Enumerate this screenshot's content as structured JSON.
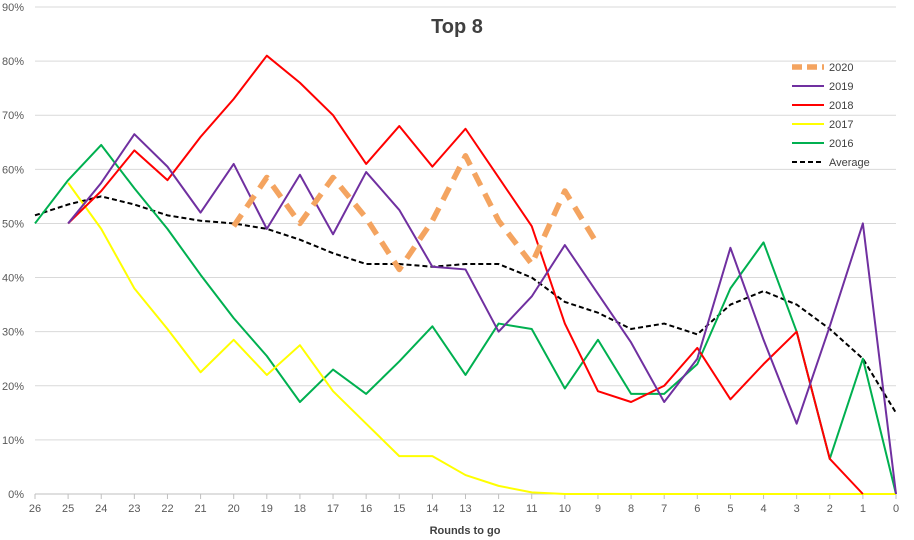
{
  "chart_data": {
    "type": "line",
    "title": "Top 8",
    "xlabel": "Rounds to go",
    "ylabel": "",
    "x": [
      26,
      25,
      24,
      23,
      22,
      21,
      20,
      19,
      18,
      17,
      16,
      15,
      14,
      13,
      12,
      11,
      10,
      9,
      8,
      7,
      6,
      5,
      4,
      3,
      2,
      1,
      0
    ],
    "x_reversed": true,
    "ylim": [
      0,
      90
    ],
    "yticks": [
      0,
      10,
      20,
      30,
      40,
      50,
      60,
      70,
      80,
      90
    ],
    "ytick_labels": [
      "0%",
      "10%",
      "20%",
      "30%",
      "40%",
      "50%",
      "60%",
      "70%",
      "80%",
      "90%"
    ],
    "grid": "horizontal",
    "legend": "top-right",
    "series": [
      {
        "name": "2020",
        "color": "#F4A460",
        "style": "dashed-thick",
        "values": [
          null,
          null,
          null,
          null,
          null,
          null,
          49.5,
          58.5,
          50,
          58.5,
          51,
          41.5,
          50.5,
          62.5,
          50.5,
          42.5,
          56,
          46,
          null,
          null,
          null,
          null,
          null,
          null,
          null,
          null,
          null
        ]
      },
      {
        "name": "2019",
        "color": "#7030A0",
        "style": "solid",
        "values": [
          null,
          50,
          57.5,
          66.5,
          60.5,
          52,
          61,
          49,
          59,
          48,
          59.5,
          52.5,
          42,
          41.5,
          30,
          36.5,
          46,
          37,
          28,
          17,
          25,
          45.5,
          28.5,
          13,
          31,
          50,
          0
        ]
      },
      {
        "name": "2018",
        "color": "#FF0000",
        "style": "solid",
        "values": [
          null,
          50,
          56,
          63.5,
          58,
          66,
          73,
          81,
          76,
          70,
          61,
          68,
          60.5,
          67.5,
          58.5,
          49.5,
          31.5,
          19,
          17,
          20,
          27,
          17.5,
          24,
          30,
          6.5,
          0,
          null
        ]
      },
      {
        "name": "2017",
        "color": "#FFFF00",
        "style": "solid",
        "values": [
          null,
          57.5,
          49,
          38,
          30.5,
          22.5,
          28.5,
          22,
          27.5,
          19,
          13,
          7,
          7,
          3.5,
          1.5,
          0.3,
          0,
          0,
          0,
          0,
          0,
          0,
          0,
          0,
          0,
          0,
          0
        ]
      },
      {
        "name": "2016",
        "color": "#00B050",
        "style": "solid",
        "values": [
          50,
          58,
          64.5,
          56.5,
          49,
          40.5,
          32.5,
          25.5,
          17,
          23,
          18.5,
          24.5,
          31,
          22,
          31.5,
          30.5,
          19.5,
          28.5,
          18.5,
          18.5,
          24,
          38,
          46.5,
          30,
          6.5,
          25,
          0
        ]
      },
      {
        "name": "Average",
        "color": "#000000",
        "style": "dashed",
        "values": [
          51.5,
          53.5,
          55,
          53.5,
          51.5,
          50.5,
          50,
          49,
          47,
          44.5,
          42.5,
          42.5,
          42,
          42.5,
          42.5,
          40,
          35.5,
          33.5,
          30.5,
          31.5,
          29.5,
          35,
          37.5,
          35,
          30.5,
          25,
          15
        ]
      }
    ]
  }
}
